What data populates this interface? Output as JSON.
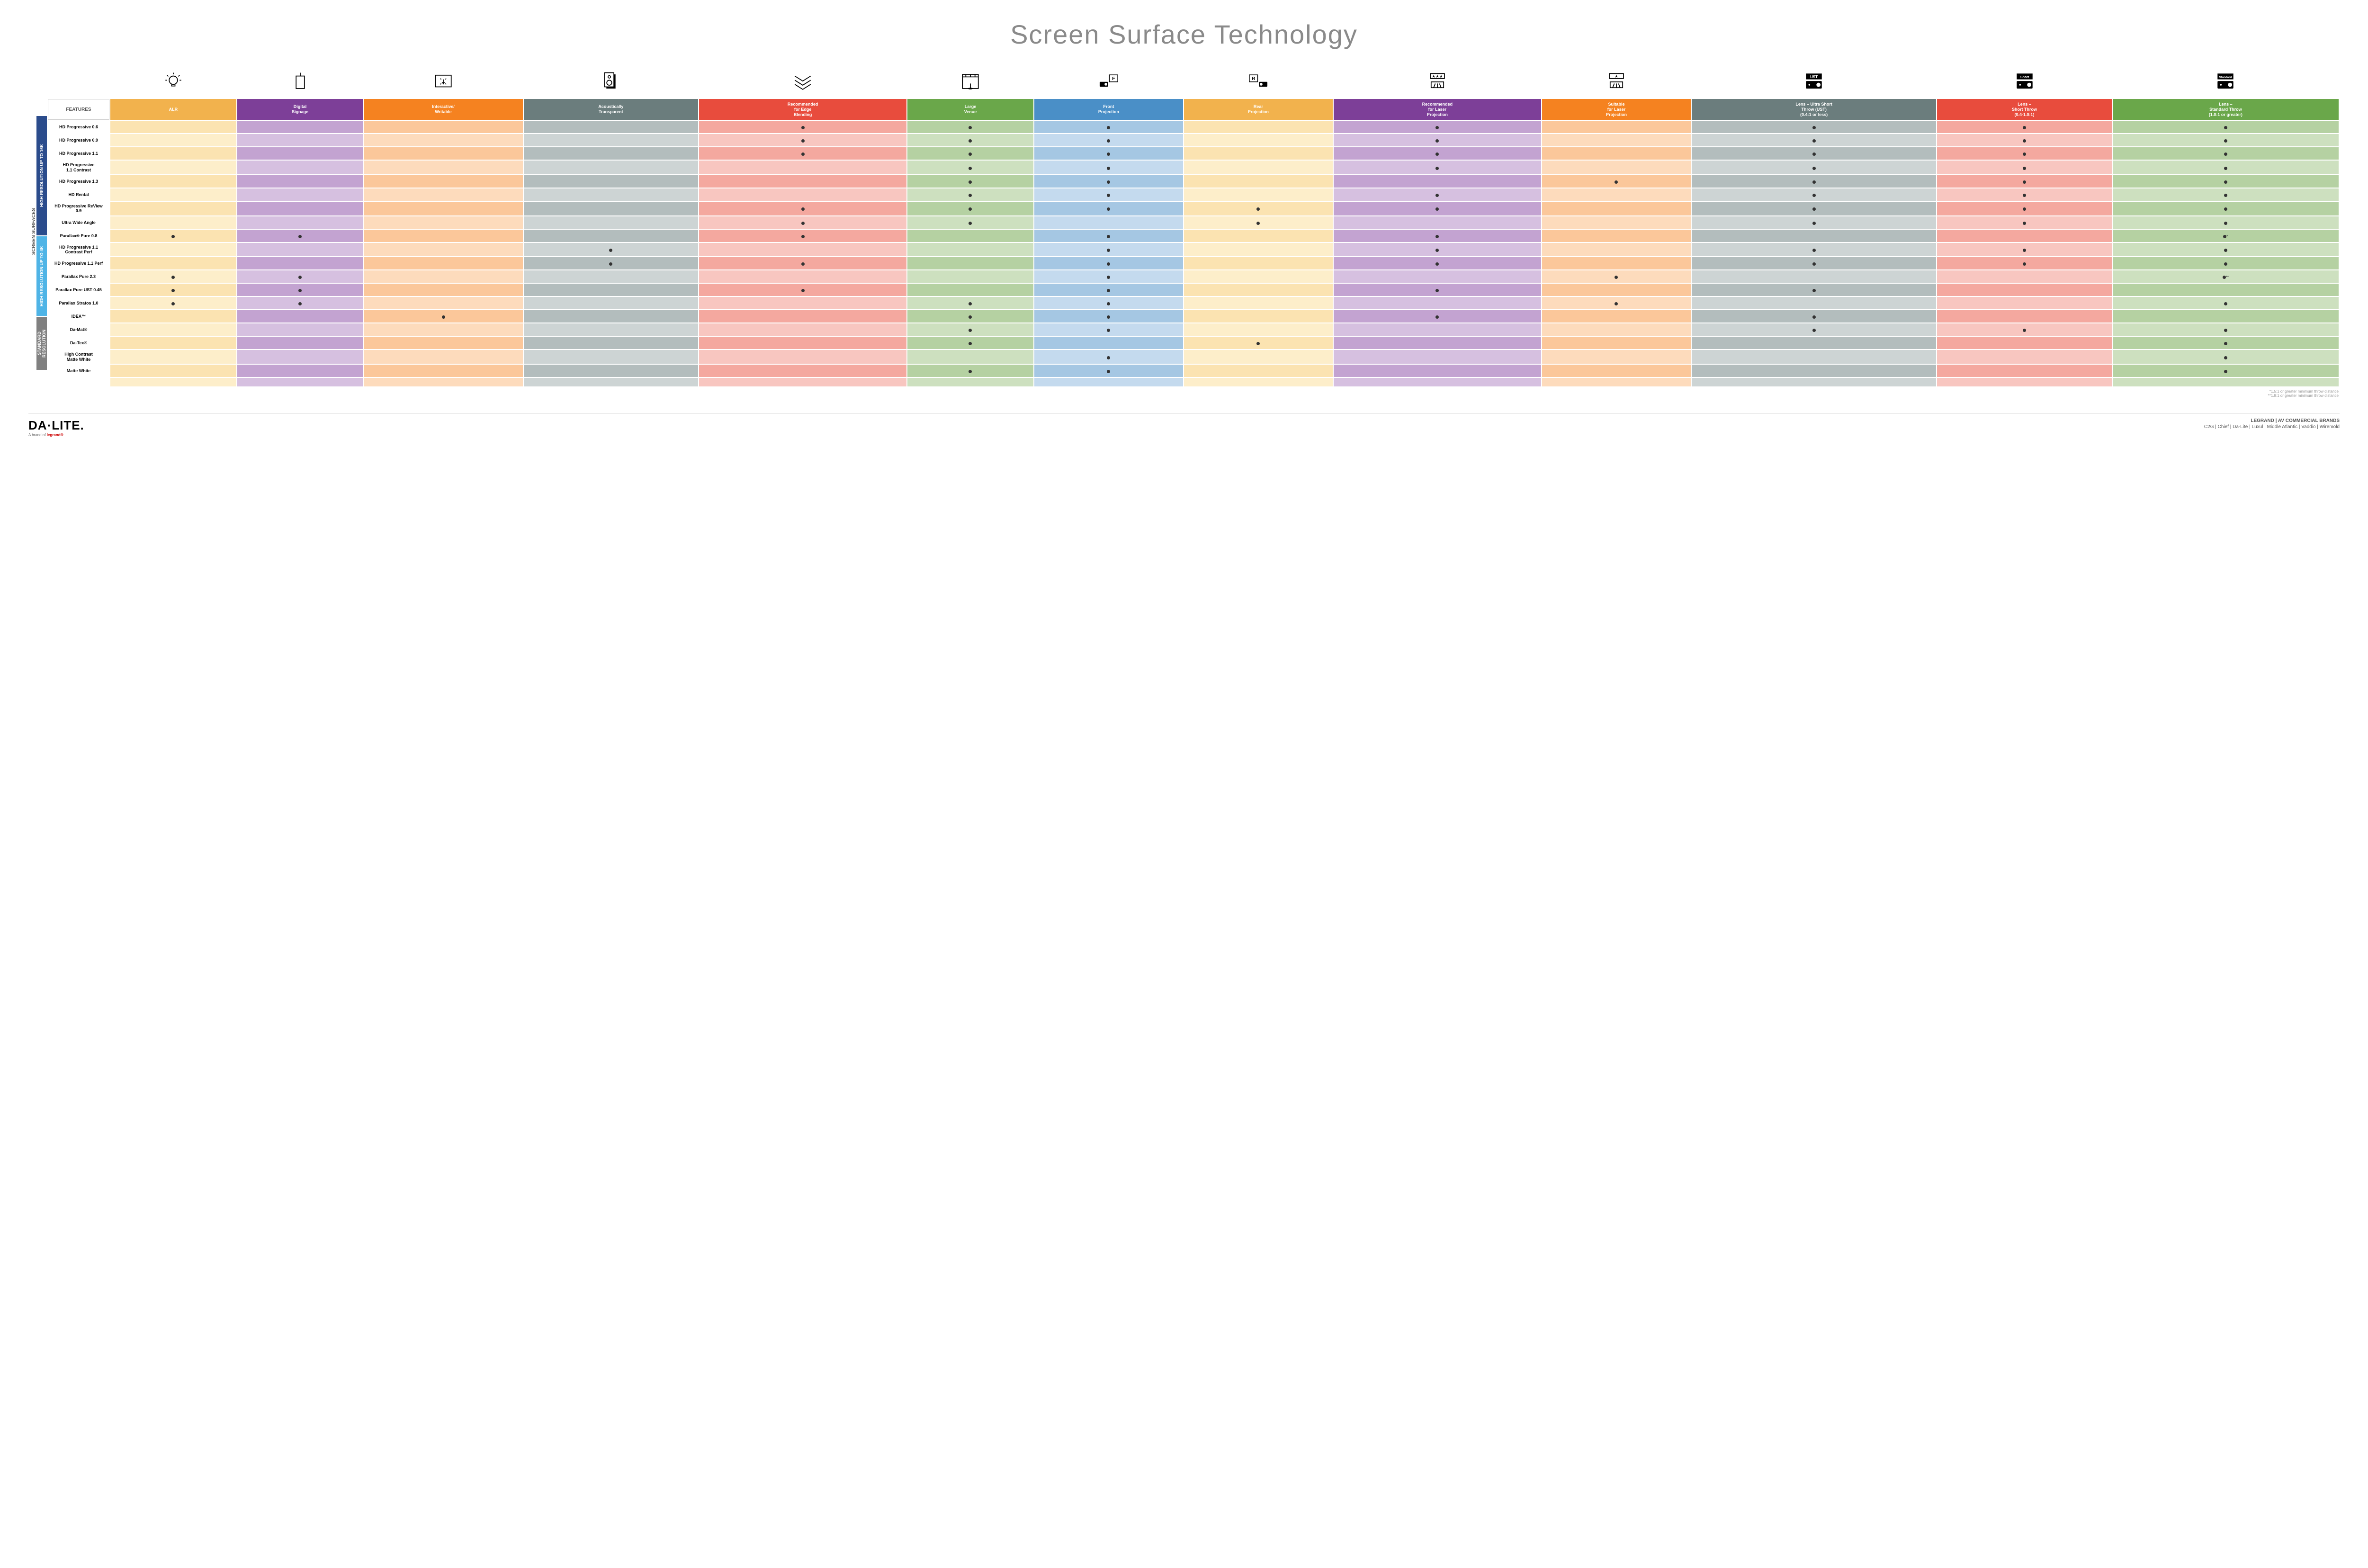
{
  "title": "Screen Surface Technology",
  "sideLabel": "SCREEN SURFACES",
  "featuresHeader": "FEATURES",
  "columns": [
    {
      "id": "alr",
      "label": "ALR",
      "colors": [
        "#f2b24d",
        "#fbe3b1",
        "#fdeeca"
      ]
    },
    {
      "id": "digsig",
      "label": "Digital\nSignage",
      "colors": [
        "#7d3f98",
        "#c3a3d1",
        "#d6c0e0"
      ]
    },
    {
      "id": "interact",
      "label": "Interactive/\nWritable",
      "colors": [
        "#f58220",
        "#fbc79a",
        "#fddbbc"
      ]
    },
    {
      "id": "acoustic",
      "label": "Acoustically\nTransparent",
      "colors": [
        "#6b7d7d",
        "#b3bdbd",
        "#cdd4d4"
      ]
    },
    {
      "id": "edge",
      "label": "Recommended\nfor Edge\nBlending",
      "colors": [
        "#e84c3d",
        "#f4a89f",
        "#f8c6c0"
      ]
    },
    {
      "id": "large",
      "label": "Large\nVenue",
      "colors": [
        "#6aa74a",
        "#b5d1a2",
        "#cde0bf"
      ]
    },
    {
      "id": "front",
      "label": "Front\nProjection",
      "colors": [
        "#4a8fc7",
        "#a5c7e3",
        "#c4daee"
      ]
    },
    {
      "id": "rear",
      "label": "Rear\nProjection",
      "colors": [
        "#f2b24d",
        "#fbe3b1",
        "#fdeeca"
      ]
    },
    {
      "id": "reclaser",
      "label": "Recommended\nfor Laser\nProjection",
      "colors": [
        "#7d3f98",
        "#c3a3d1",
        "#d6c0e0"
      ]
    },
    {
      "id": "suitlaser",
      "label": "Suitable\nfor Laser\nProjection",
      "colors": [
        "#f58220",
        "#fbc79a",
        "#fddbbc"
      ]
    },
    {
      "id": "ust",
      "label": "Lens – Ultra Short\nThrow (UST)\n(0.4:1 or less)",
      "colors": [
        "#6b7d7d",
        "#b3bdbd",
        "#cdd4d4"
      ]
    },
    {
      "id": "short",
      "label": "Lens –\nShort Throw\n(0.4-1.0:1)",
      "colors": [
        "#e84c3d",
        "#f4a89f",
        "#f8c6c0"
      ]
    },
    {
      "id": "std",
      "label": "Lens –\nStandard Throw\n(1.0:1 or greater)",
      "colors": [
        "#6aa74a",
        "#b5d1a2",
        "#cde0bf"
      ]
    }
  ],
  "groups": [
    {
      "label": "HIGH RESOLUTION UP TO 16K",
      "color": "#2b4c8c",
      "rows": [
        {
          "name": "HD Progressive 0.6",
          "d": [
            0,
            0,
            0,
            0,
            1,
            1,
            1,
            0,
            1,
            0,
            1,
            1,
            1
          ]
        },
        {
          "name": "HD Progressive 0.9",
          "d": [
            0,
            0,
            0,
            0,
            1,
            1,
            1,
            0,
            1,
            0,
            1,
            1,
            1
          ]
        },
        {
          "name": "HD Progressive 1.1",
          "d": [
            0,
            0,
            0,
            0,
            1,
            1,
            1,
            0,
            1,
            0,
            1,
            1,
            1
          ]
        },
        {
          "name": "HD Progressive\n1.1 Contrast",
          "d": [
            0,
            0,
            0,
            0,
            0,
            1,
            1,
            0,
            1,
            0,
            1,
            1,
            1
          ]
        },
        {
          "name": "HD Progressive 1.3",
          "d": [
            0,
            0,
            0,
            0,
            0,
            1,
            1,
            0,
            0,
            1,
            1,
            1,
            1
          ]
        },
        {
          "name": "HD Rental",
          "d": [
            0,
            0,
            0,
            0,
            0,
            1,
            1,
            0,
            1,
            0,
            1,
            1,
            1
          ]
        },
        {
          "name": "HD Progressive ReView 0.9",
          "d": [
            0,
            0,
            0,
            0,
            1,
            1,
            1,
            1,
            1,
            0,
            1,
            1,
            1
          ]
        },
        {
          "name": "Ultra Wide Angle",
          "d": [
            0,
            0,
            0,
            0,
            1,
            1,
            0,
            1,
            0,
            0,
            1,
            1,
            1
          ]
        },
        {
          "name": "Parallax® Pure 0.8",
          "d": [
            1,
            1,
            0,
            0,
            1,
            0,
            1,
            0,
            1,
            0,
            0,
            0,
            "*"
          ]
        }
      ]
    },
    {
      "label": "HIGH RESOLUTION UP TO 4K",
      "color": "#4fb4e6",
      "rows": [
        {
          "name": "HD Progressive 1.1\nContrast Perf",
          "d": [
            0,
            0,
            0,
            1,
            0,
            0,
            1,
            0,
            1,
            0,
            1,
            1,
            1
          ]
        },
        {
          "name": "HD Progressive 1.1 Perf",
          "d": [
            0,
            0,
            0,
            1,
            1,
            0,
            1,
            0,
            1,
            0,
            1,
            1,
            1
          ]
        },
        {
          "name": "Parallax Pure 2.3",
          "d": [
            1,
            1,
            0,
            0,
            0,
            0,
            1,
            0,
            0,
            1,
            0,
            0,
            "**"
          ]
        },
        {
          "name": "Parallax Pure UST 0.45",
          "d": [
            1,
            1,
            0,
            0,
            1,
            0,
            1,
            0,
            1,
            0,
            1,
            0,
            0
          ]
        },
        {
          "name": "Parallax Stratos 1.0",
          "d": [
            1,
            1,
            0,
            0,
            0,
            1,
            1,
            0,
            0,
            1,
            0,
            0,
            1
          ]
        },
        {
          "name": "IDEA™",
          "d": [
            0,
            0,
            1,
            0,
            0,
            1,
            1,
            0,
            1,
            0,
            1,
            0,
            0
          ]
        }
      ]
    },
    {
      "label": "STANDARD\nRESOLUTION",
      "color": "#808080",
      "rows": [
        {
          "name": "Da-Mat®",
          "d": [
            0,
            0,
            0,
            0,
            0,
            1,
            1,
            0,
            0,
            0,
            1,
            1,
            1
          ]
        },
        {
          "name": "Da-Tex®",
          "d": [
            0,
            0,
            0,
            0,
            0,
            1,
            0,
            1,
            0,
            0,
            0,
            0,
            1
          ]
        },
        {
          "name": "High Contrast\nMatte White",
          "d": [
            0,
            0,
            0,
            0,
            0,
            0,
            1,
            0,
            0,
            0,
            0,
            0,
            1
          ]
        },
        {
          "name": "Matte White",
          "d": [
            0,
            0,
            0,
            0,
            0,
            1,
            1,
            0,
            0,
            0,
            0,
            0,
            1
          ]
        }
      ]
    }
  ],
  "footnotes": [
    "*1.5:1 or greater minimum throw distance",
    "**1.8:1 or greater minimum throw distance"
  ],
  "footer": {
    "brand": "DA·LITE.",
    "brandTag": "A brand of ",
    "brandTagBold": "legrand®",
    "legrandTop": "LEGRAND | AV COMMERCIAL BRANDS",
    "legrandBrands": "C2G  |  Chief  |  Da-Lite  |  Luxul  |  Middle Atlantic  |  Vaddio  |  Wiremold"
  },
  "icons": [
    "bulb",
    "box",
    "touch",
    "speaker",
    "chevrons",
    "stage",
    "proj-f",
    "proj-r",
    "stars-laser",
    "star-laser",
    "ust",
    "short",
    "standard"
  ]
}
